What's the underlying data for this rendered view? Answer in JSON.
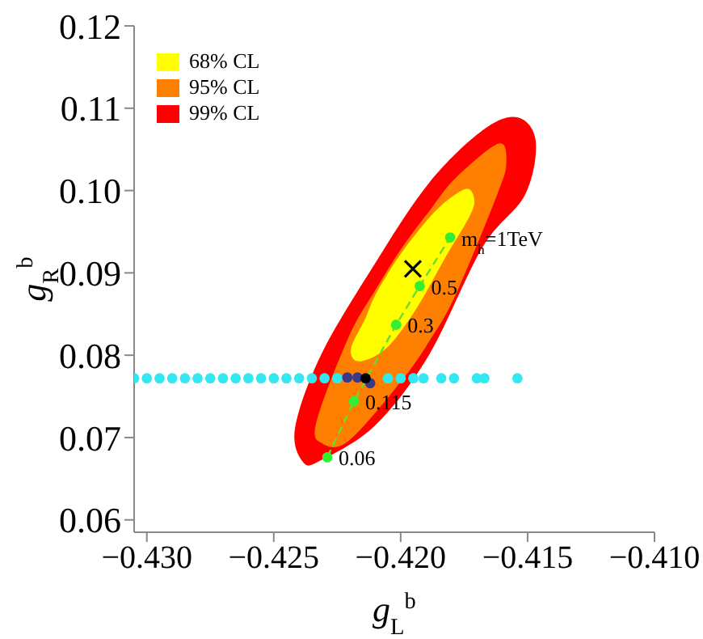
{
  "chart_data": {
    "type": "scatter",
    "xlabel": "g$_{L}$$^{b}$",
    "ylabel": "g$_{R}$$^{b}$",
    "xlim": [
      -0.4305,
      -0.41
    ],
    "ylim": [
      0.0585,
      0.12
    ],
    "xticks": [
      {
        "value": -0.43,
        "label": "−0.430"
      },
      {
        "value": -0.425,
        "label": "−0.425"
      },
      {
        "value": -0.42,
        "label": "−0.420"
      },
      {
        "value": -0.415,
        "label": "−0.415"
      },
      {
        "value": -0.41,
        "label": "−0.410"
      }
    ],
    "yticks": [
      {
        "value": 0.06,
        "label": "0.06"
      },
      {
        "value": 0.07,
        "label": "0.07"
      },
      {
        "value": 0.08,
        "label": "0.08"
      },
      {
        "value": 0.09,
        "label": "0.09"
      },
      {
        "value": 0.1,
        "label": "0.10"
      },
      {
        "value": 0.11,
        "label": "0.11"
      },
      {
        "value": 0.12,
        "label": "0.12"
      }
    ],
    "grid": false,
    "legend": "top left",
    "series": [
      {
        "type": "area",
        "name": "68% CL",
        "color": "#ffff00",
        "x": [
          -0.42195,
          -0.4214,
          -0.421,
          -0.4202,
          -0.41931,
          -0.4184,
          -0.41742,
          -0.4171,
          -0.4173,
          -0.4182,
          -0.41931,
          -0.4203,
          -0.421,
          -0.42174
        ],
        "values": [
          0.0809,
          0.0844,
          0.0873,
          0.0914,
          0.0951,
          0.0982,
          0.1002,
          0.0989,
          0.0968,
          0.0921,
          0.086,
          0.0817,
          0.0799,
          0.0793
        ]
      },
      {
        "type": "area",
        "name": "95% CL",
        "color": "#ff8000",
        "x": [
          -0.42332,
          -0.42205,
          -0.421,
          -0.41994,
          -0.41885,
          -0.41784,
          -0.41615,
          -0.41584,
          -0.4162,
          -0.41784,
          -0.41885,
          -0.41994,
          -0.42205,
          -0.4231
        ],
        "values": [
          0.0719,
          0.0822,
          0.0879,
          0.0931,
          0.0976,
          0.1015,
          0.1057,
          0.1034,
          0.0995,
          0.0873,
          0.0818,
          0.077,
          0.0696,
          0.0693
        ]
      },
      {
        "type": "area",
        "name": "99% CL",
        "color": "#ff0000",
        "x": [
          -0.42416,
          -0.42311,
          -0.421,
          -0.41889,
          -0.41678,
          -0.41541,
          -0.41468,
          -0.4151,
          -0.41678,
          -0.41889,
          -0.421,
          -0.42311,
          -0.42384
        ],
        "values": [
          0.0712,
          0.0802,
          0.0912,
          0.1009,
          0.1073,
          0.1089,
          0.106,
          0.0995,
          0.0931,
          0.08,
          0.0715,
          0.0673,
          0.067
        ]
      },
      {
        "type": "scatter",
        "color": "#33e8f0",
        "marker": "circle",
        "x": [
          -0.4305,
          -0.43,
          -0.4295,
          -0.429,
          -0.4285,
          -0.428,
          -0.4275,
          -0.427,
          -0.4265,
          -0.426,
          -0.4255,
          -0.425,
          -0.4245,
          -0.424,
          -0.4235,
          -0.423,
          -0.4225,
          -0.4205,
          -0.42,
          -0.4195,
          -0.4191,
          -0.4184,
          -0.4179,
          -0.417,
          -0.4167,
          -0.4154
        ],
        "values": [
          0.0772,
          0.0772,
          0.0772,
          0.0772,
          0.0772,
          0.0772,
          0.0772,
          0.0772,
          0.0772,
          0.0772,
          0.0772,
          0.0772,
          0.0772,
          0.0772,
          0.0772,
          0.0772,
          0.0772,
          0.0772,
          0.0772,
          0.0772,
          0.0772,
          0.0772,
          0.0772,
          0.0772,
          0.0772,
          0.0772
        ]
      },
      {
        "type": "scatter",
        "color": "#3a3a8a",
        "marker": "circle",
        "x": [
          -0.4221,
          -0.4217,
          -0.4212
        ],
        "values": [
          0.0773,
          0.0773,
          0.0766
        ]
      },
      {
        "type": "line",
        "color": "#66dd33",
        "line_style": "dashed",
        "marker": "none",
        "x": [
          -0.42289,
          -0.42184,
          -0.42018,
          -0.41925,
          -0.41805
        ],
        "values": [
          0.0676,
          0.0744,
          0.0837,
          0.0884,
          0.0943
        ]
      },
      {
        "type": "scatter",
        "color": "#33ee33",
        "marker": "circle",
        "x": [
          -0.42289,
          -0.42184,
          -0.42018,
          -0.41925,
          -0.41805
        ],
        "values": [
          0.0676,
          0.0744,
          0.0837,
          0.0884,
          0.0943
        ]
      },
      {
        "type": "scatter",
        "color": "#000000",
        "marker": "circle",
        "x": [
          -0.42138
        ],
        "values": [
          0.0772
        ]
      },
      {
        "type": "scatter",
        "color": "#000000",
        "marker": "cross",
        "x": [
          -0.41952
        ],
        "values": [
          0.0905
        ]
      }
    ],
    "annotations": [
      {
        "text": "m$_{h}$=1TeV",
        "x": -0.41805,
        "y": 0.0943
      },
      {
        "text": "0.5",
        "x": -0.41925,
        "y": 0.0884
      },
      {
        "text": "0.3",
        "x": -0.42018,
        "y": 0.0837
      },
      {
        "text": "0.115",
        "x": -0.42184,
        "y": 0.0744
      },
      {
        "text": "0.06",
        "x": -0.42289,
        "y": 0.0676
      }
    ]
  }
}
